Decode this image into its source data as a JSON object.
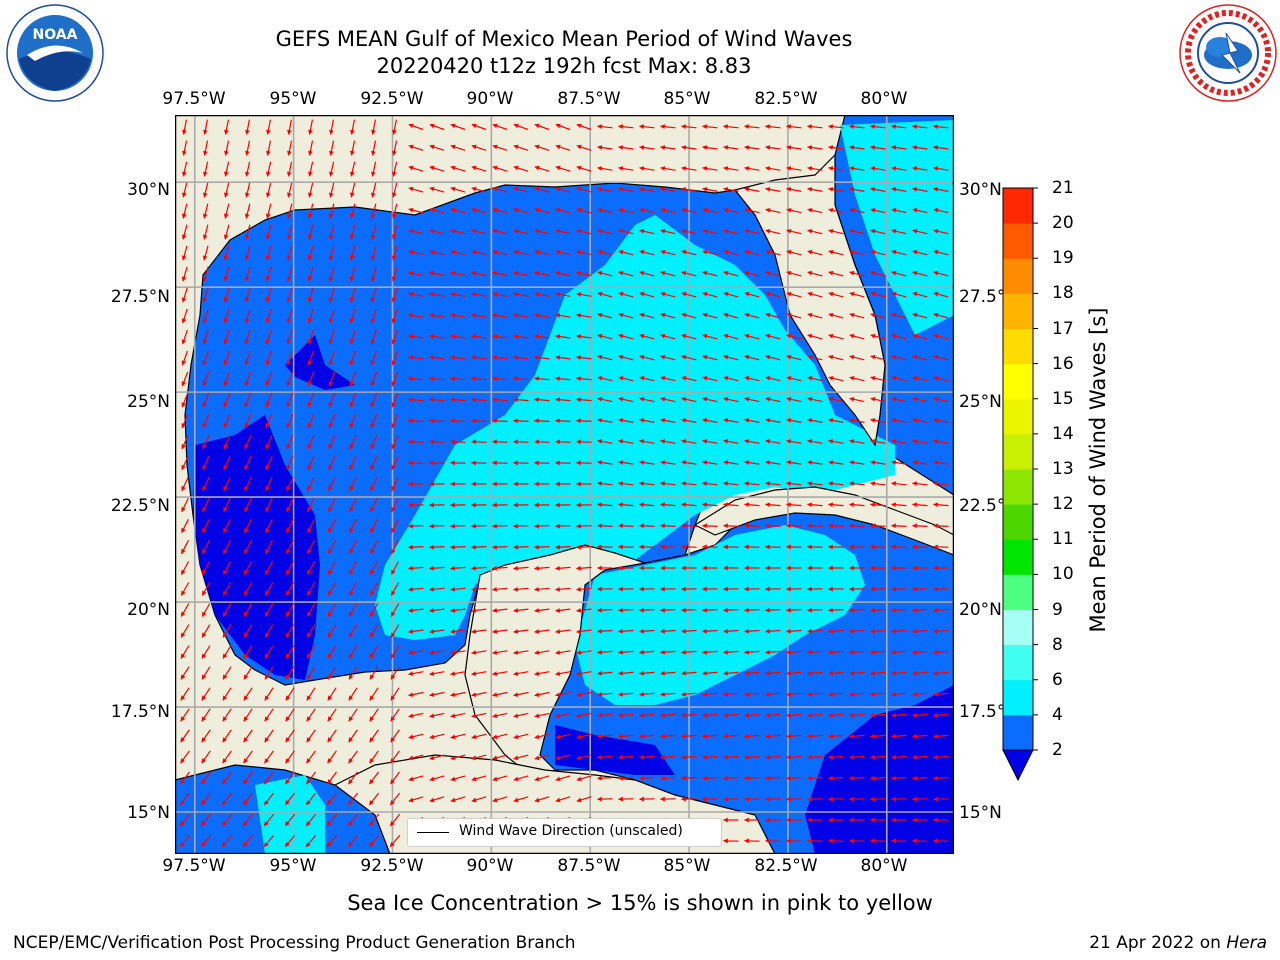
{
  "header": {
    "title_line1": "GEFS MEAN Gulf of Mexico Mean Period of Wind Waves",
    "title_line2": "20220420 t12z 192h fcst   Max: 8.83"
  },
  "logos": {
    "noaa_text": "NOAA",
    "noaa_ring_text": "NATIONAL OCEANIC AND ATMOSPHERIC ADMINISTRATION · U.S. DEPARTMENT OF COMMERCE",
    "nws_ring_text": "NATIONAL WEATHER SERVICE"
  },
  "map": {
    "lon_labels": [
      "97.5°W",
      "95°W",
      "92.5°W",
      "90°W",
      "87.5°W",
      "85°W",
      "82.5°W",
      "80°W"
    ],
    "lat_labels": [
      "30°N",
      "27.5°N",
      "25°N",
      "22.5°N",
      "20°N",
      "17.5°N",
      "15°N"
    ],
    "extent": {
      "lon_min": -98,
      "lon_max": -78.3,
      "lat_min": 14,
      "lat_max": 31.6
    },
    "land_color": "#efeddb",
    "arrow_color": "#ff0000",
    "legend_label": "Wind Wave Direction (unscaled)"
  },
  "colorbar": {
    "label": "Mean Period of Wind Waves [s]",
    "ticks": [
      "2",
      "4",
      "6",
      "8",
      "9",
      "10",
      "11",
      "12",
      "13",
      "14",
      "15",
      "16",
      "17",
      "18",
      "19",
      "20",
      "21"
    ],
    "colors": [
      "#0a6dff",
      "#00f0ff",
      "#3ffff0",
      "#a6fff4",
      "#4dff80",
      "#00e600",
      "#4dd600",
      "#8ce600",
      "#c8f000",
      "#ecf500",
      "#ffff00",
      "#ffdc00",
      "#ffb400",
      "#ff8c00",
      "#ff5a00",
      "#ff2800"
    ],
    "under_color": "#0000e6"
  },
  "footer": {
    "note": "Sea Ice Concentration > 15% is shown in pink to yellow",
    "credit": "NCEP/EMC/Verification Post Processing Product Generation Branch",
    "date": "21 Apr 2022 on",
    "host": "Hera"
  }
}
